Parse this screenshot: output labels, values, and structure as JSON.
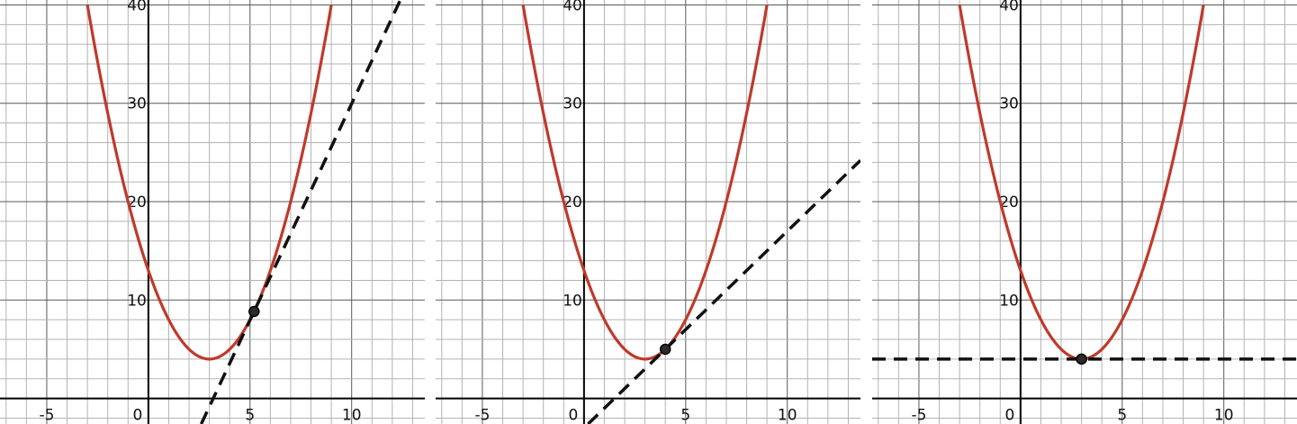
{
  "colors": {
    "curve": "#c0392b",
    "tangent": "#111111",
    "point": "#2b2b2b"
  },
  "chart_data": [
    {
      "type": "line",
      "title": "",
      "xlabel": "",
      "ylabel": "",
      "xlim": [
        -7.3,
        13.6
      ],
      "ylim": [
        -2.6,
        40.5
      ],
      "grid": true,
      "x_ticks": [
        {
          "v": -5,
          "label": "-5"
        },
        {
          "v": 0,
          "label": "0"
        },
        {
          "v": 5,
          "label": "5"
        },
        {
          "v": 10,
          "label": "10"
        }
      ],
      "y_ticks": [
        {
          "v": 10,
          "label": "10"
        },
        {
          "v": 20,
          "label": "20"
        },
        {
          "v": 30,
          "label": "30"
        },
        {
          "v": 40,
          "label": "40"
        }
      ],
      "curve": {
        "name": "",
        "a": 1,
        "h": 3,
        "k": 4,
        "x_range": [
          -3,
          9
        ]
      },
      "tangent_point": {
        "x": 5.2,
        "y": 8.84
      },
      "tangent_slope": 4.4
    },
    {
      "type": "line",
      "title": "",
      "xlabel": "",
      "ylabel": "",
      "xlim": [
        -7.3,
        13.6
      ],
      "ylim": [
        -2.6,
        40.5
      ],
      "grid": true,
      "x_ticks": [
        {
          "v": -5,
          "label": "-5"
        },
        {
          "v": 0,
          "label": "0"
        },
        {
          "v": 5,
          "label": "5"
        },
        {
          "v": 10,
          "label": "10"
        }
      ],
      "y_ticks": [
        {
          "v": 10,
          "label": "10"
        },
        {
          "v": 20,
          "label": "20"
        },
        {
          "v": 30,
          "label": "30"
        },
        {
          "v": 40,
          "label": "40"
        }
      ],
      "curve": {
        "name": "",
        "a": 1,
        "h": 3,
        "k": 4,
        "x_range": [
          -3,
          9
        ]
      },
      "tangent_point": {
        "x": 4,
        "y": 5
      },
      "tangent_slope": 2
    },
    {
      "type": "line",
      "title": "",
      "xlabel": "",
      "ylabel": "",
      "xlim": [
        -7.3,
        13.6
      ],
      "ylim": [
        -2.6,
        40.5
      ],
      "grid": true,
      "x_ticks": [
        {
          "v": -5,
          "label": "-5"
        },
        {
          "v": 0,
          "label": "0"
        },
        {
          "v": 5,
          "label": "5"
        },
        {
          "v": 10,
          "label": "10"
        }
      ],
      "y_ticks": [
        {
          "v": 10,
          "label": "10"
        },
        {
          "v": 20,
          "label": "20"
        },
        {
          "v": 30,
          "label": "30"
        },
        {
          "v": 40,
          "label": "40"
        }
      ],
      "curve": {
        "name": "",
        "a": 1,
        "h": 3,
        "k": 4,
        "x_range": [
          -3,
          9
        ]
      },
      "tangent_point": {
        "x": 3,
        "y": 4
      },
      "tangent_slope": 0
    }
  ]
}
